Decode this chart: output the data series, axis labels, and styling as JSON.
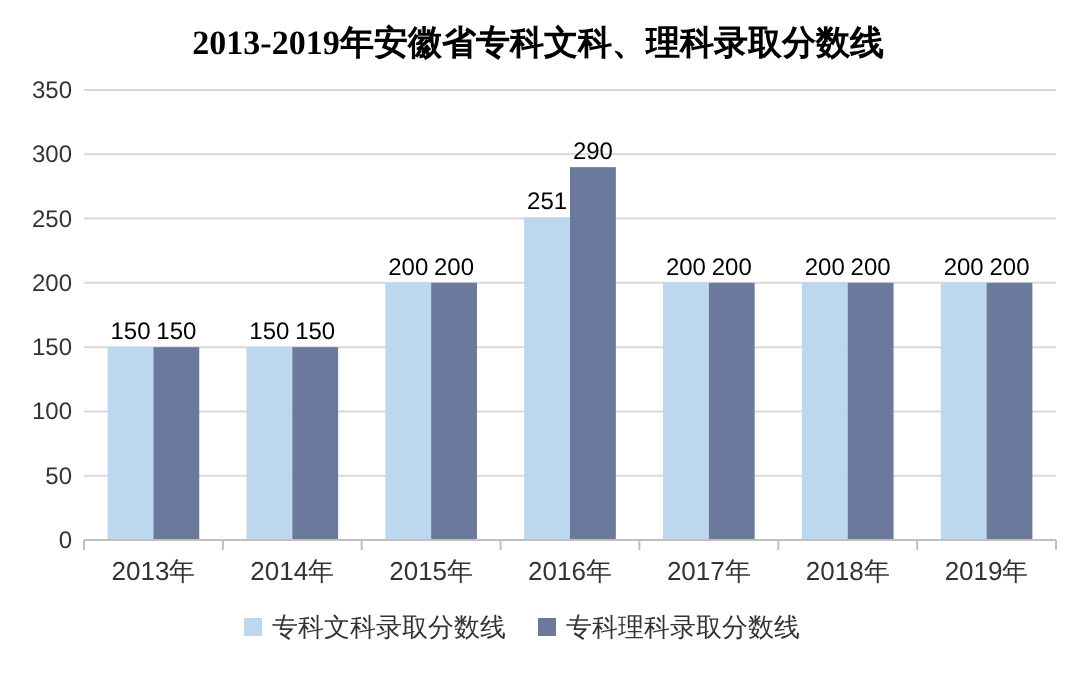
{
  "chart_data": {
    "type": "bar",
    "title": "2013-2019年安徽省专科文科、理科录取分数线",
    "categories": [
      "2013年",
      "2014年",
      "2015年",
      "2016年",
      "2017年",
      "2018年",
      "2019年"
    ],
    "series": [
      {
        "name": "专科文科录取分数线",
        "color": "#bdd7ee",
        "values": [
          150,
          150,
          200,
          251,
          200,
          200,
          200
        ]
      },
      {
        "name": "专科理科录取分数线",
        "color": "#6b7a9c",
        "values": [
          150,
          150,
          200,
          290,
          200,
          200,
          200
        ]
      }
    ],
    "ylim": [
      0,
      350
    ],
    "yticks": [
      0,
      50,
      100,
      150,
      200,
      250,
      300,
      350
    ],
    "grid": "y",
    "legend": "bottom",
    "data_labels": true
  }
}
